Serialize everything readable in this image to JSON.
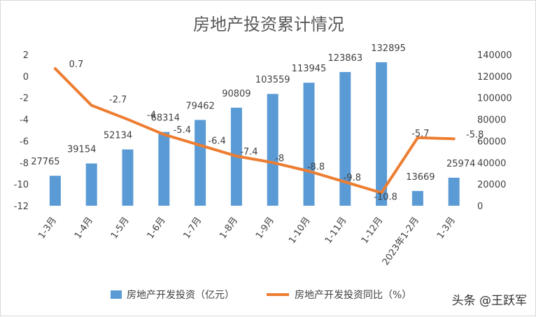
{
  "chart_data": {
    "type": "bar+line",
    "title": "房地产投资累计情况",
    "categories": [
      "1-3月",
      "1-4月",
      "1-5月",
      "1-6月",
      "1-7月",
      "1-8月",
      "1-9月",
      "1-10月",
      "1-11月",
      "1-12月",
      "2023年1-2月",
      "1-3月"
    ],
    "series": [
      {
        "name": "房地产开发投资（亿元）",
        "type": "bar",
        "axis": "right",
        "color": "#5b9bd5",
        "values": [
          27765,
          39154,
          52134,
          68314,
          79462,
          90809,
          103559,
          113945,
          123863,
          132895,
          13669,
          25974
        ]
      },
      {
        "name": "房地产开发投资同比（%）",
        "type": "line",
        "axis": "left",
        "color": "#ed7d31",
        "values": [
          0.7,
          -2.7,
          -4,
          -5.4,
          -6.4,
          -7.4,
          -8,
          -8.8,
          -9.8,
          -10.8,
          -5.7,
          -5.8
        ]
      }
    ],
    "y_left": {
      "min": -12,
      "max": 2,
      "ticks": [
        2,
        0,
        -2,
        -4,
        -6,
        -8,
        -10,
        -12
      ]
    },
    "y_right": {
      "min": 0,
      "max": 140000,
      "ticks": [
        140000,
        120000,
        100000,
        80000,
        60000,
        40000,
        20000,
        0
      ]
    },
    "grid": false,
    "legend_position": "bottom"
  },
  "watermark": "头条 @王跃军"
}
